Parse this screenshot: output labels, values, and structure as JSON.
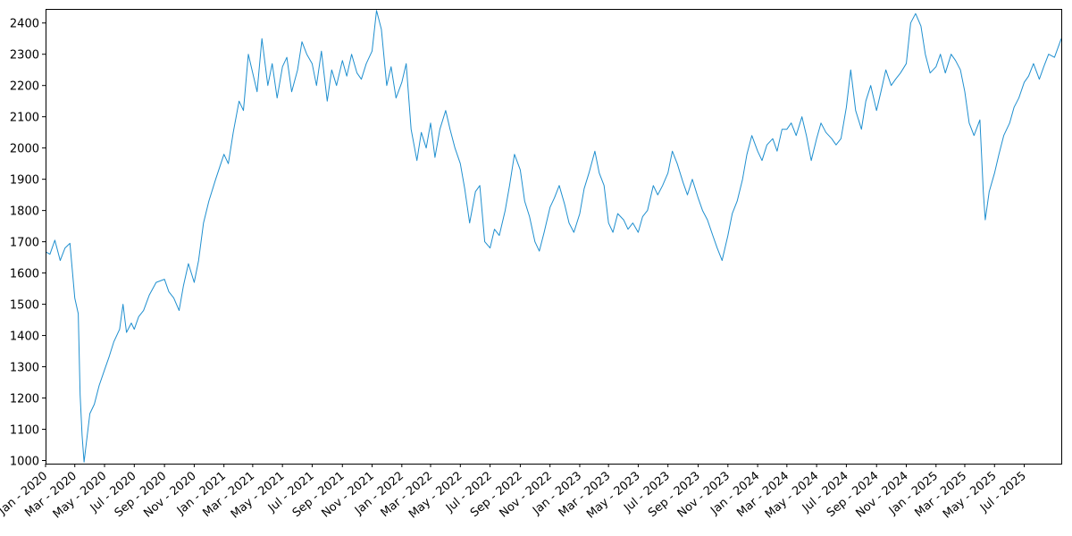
{
  "chart_data": {
    "type": "line",
    "title": "",
    "xlabel": "",
    "ylabel": "",
    "ylim": [
      990,
      2445
    ],
    "xlim": [
      "2020-01-01",
      "2025-09-15"
    ],
    "grid": false,
    "legend": "none",
    "yticks": [
      "1000",
      "1100",
      "1200",
      "1300",
      "1400",
      "1500",
      "1600",
      "1700",
      "1800",
      "1900",
      "2000",
      "2100",
      "2200",
      "2300",
      "2400"
    ],
    "xticks": [
      {
        "date": "2020-01-01",
        "label": "Jan - 2020"
      },
      {
        "date": "2020-03-01",
        "label": "Mar - 2020"
      },
      {
        "date": "2020-05-01",
        "label": "May - 2020"
      },
      {
        "date": "2020-07-01",
        "label": "Jul - 2020"
      },
      {
        "date": "2020-09-01",
        "label": "Sep - 2020"
      },
      {
        "date": "2020-11-01",
        "label": "Nov - 2020"
      },
      {
        "date": "2021-01-01",
        "label": "Jan - 2021"
      },
      {
        "date": "2021-03-01",
        "label": "Mar - 2021"
      },
      {
        "date": "2021-05-01",
        "label": "May - 2021"
      },
      {
        "date": "2021-07-01",
        "label": "Jul - 2021"
      },
      {
        "date": "2021-09-01",
        "label": "Sep - 2021"
      },
      {
        "date": "2021-11-01",
        "label": "Nov - 2021"
      },
      {
        "date": "2022-01-01",
        "label": "Jan - 2022"
      },
      {
        "date": "2022-03-01",
        "label": "Mar - 2022"
      },
      {
        "date": "2022-05-01",
        "label": "May - 2022"
      },
      {
        "date": "2022-07-01",
        "label": "Jul - 2022"
      },
      {
        "date": "2022-09-01",
        "label": "Sep - 2022"
      },
      {
        "date": "2022-11-01",
        "label": "Nov - 2022"
      },
      {
        "date": "2023-01-01",
        "label": "Jan - 2023"
      },
      {
        "date": "2023-03-01",
        "label": "Mar - 2023"
      },
      {
        "date": "2023-05-01",
        "label": "May - 2023"
      },
      {
        "date": "2023-07-01",
        "label": "Jul - 2023"
      },
      {
        "date": "2023-09-01",
        "label": "Sep - 2023"
      },
      {
        "date": "2023-11-01",
        "label": "Nov - 2023"
      },
      {
        "date": "2024-01-01",
        "label": "Jan - 2024"
      },
      {
        "date": "2024-03-01",
        "label": "Mar - 2024"
      },
      {
        "date": "2024-05-01",
        "label": "May - 2024"
      },
      {
        "date": "2024-07-01",
        "label": "Jul - 2024"
      },
      {
        "date": "2024-09-01",
        "label": "Sep - 2024"
      },
      {
        "date": "2024-11-01",
        "label": "Nov - 2024"
      },
      {
        "date": "2025-01-01",
        "label": "Jan - 2025"
      },
      {
        "date": "2025-03-01",
        "label": "Mar - 2025"
      },
      {
        "date": "2025-05-01",
        "label": "May - 2025"
      },
      {
        "date": "2025-07-01",
        "label": "Jul - 2025"
      }
    ],
    "series": [
      {
        "color": "#1f8fcf",
        "points": [
          [
            "2020-01-01",
            1668
          ],
          [
            "2020-01-10",
            1660
          ],
          [
            "2020-01-20",
            1705
          ],
          [
            "2020-01-31",
            1640
          ],
          [
            "2020-02-10",
            1680
          ],
          [
            "2020-02-20",
            1695
          ],
          [
            "2020-03-01",
            1520
          ],
          [
            "2020-03-08",
            1470
          ],
          [
            "2020-03-12",
            1210
          ],
          [
            "2020-03-16",
            1080
          ],
          [
            "2020-03-20",
            995
          ],
          [
            "2020-03-25",
            1060
          ],
          [
            "2020-04-01",
            1150
          ],
          [
            "2020-04-10",
            1180
          ],
          [
            "2020-04-20",
            1240
          ],
          [
            "2020-05-01",
            1290
          ],
          [
            "2020-05-10",
            1330
          ],
          [
            "2020-05-20",
            1380
          ],
          [
            "2020-06-01",
            1420
          ],
          [
            "2020-06-08",
            1500
          ],
          [
            "2020-06-15",
            1410
          ],
          [
            "2020-06-25",
            1440
          ],
          [
            "2020-07-01",
            1420
          ],
          [
            "2020-07-10",
            1460
          ],
          [
            "2020-07-20",
            1480
          ],
          [
            "2020-08-01",
            1530
          ],
          [
            "2020-08-15",
            1570
          ],
          [
            "2020-09-01",
            1580
          ],
          [
            "2020-09-10",
            1540
          ],
          [
            "2020-09-20",
            1520
          ],
          [
            "2020-10-01",
            1480
          ],
          [
            "2020-10-10",
            1560
          ],
          [
            "2020-10-20",
            1630
          ],
          [
            "2020-11-01",
            1570
          ],
          [
            "2020-11-10",
            1640
          ],
          [
            "2020-11-20",
            1760
          ],
          [
            "2020-12-01",
            1830
          ],
          [
            "2020-12-15",
            1900
          ],
          [
            "2021-01-01",
            1980
          ],
          [
            "2021-01-10",
            1950
          ],
          [
            "2021-01-20",
            2050
          ],
          [
            "2021-02-01",
            2150
          ],
          [
            "2021-02-10",
            2120
          ],
          [
            "2021-02-20",
            2300
          ],
          [
            "2021-03-01",
            2240
          ],
          [
            "2021-03-10",
            2180
          ],
          [
            "2021-03-20",
            2350
          ],
          [
            "2021-04-01",
            2200
          ],
          [
            "2021-04-10",
            2270
          ],
          [
            "2021-04-20",
            2160
          ],
          [
            "2021-05-01",
            2260
          ],
          [
            "2021-05-10",
            2290
          ],
          [
            "2021-05-20",
            2180
          ],
          [
            "2021-06-01",
            2250
          ],
          [
            "2021-06-10",
            2340
          ],
          [
            "2021-06-20",
            2300
          ],
          [
            "2021-07-01",
            2270
          ],
          [
            "2021-07-10",
            2200
          ],
          [
            "2021-07-20",
            2310
          ],
          [
            "2021-08-01",
            2150
          ],
          [
            "2021-08-10",
            2250
          ],
          [
            "2021-08-20",
            2200
          ],
          [
            "2021-09-01",
            2280
          ],
          [
            "2021-09-10",
            2230
          ],
          [
            "2021-09-20",
            2300
          ],
          [
            "2021-10-01",
            2240
          ],
          [
            "2021-10-10",
            2220
          ],
          [
            "2021-10-20",
            2270
          ],
          [
            "2021-11-01",
            2310
          ],
          [
            "2021-11-10",
            2440
          ],
          [
            "2021-11-20",
            2380
          ],
          [
            "2021-12-01",
            2200
          ],
          [
            "2021-12-10",
            2260
          ],
          [
            "2021-12-20",
            2160
          ],
          [
            "2022-01-01",
            2210
          ],
          [
            "2022-01-10",
            2270
          ],
          [
            "2022-01-20",
            2060
          ],
          [
            "2022-02-01",
            1960
          ],
          [
            "2022-02-10",
            2050
          ],
          [
            "2022-02-20",
            2000
          ],
          [
            "2022-03-01",
            2080
          ],
          [
            "2022-03-10",
            1970
          ],
          [
            "2022-03-20",
            2060
          ],
          [
            "2022-04-01",
            2120
          ],
          [
            "2022-04-10",
            2060
          ],
          [
            "2022-04-20",
            2000
          ],
          [
            "2022-05-01",
            1950
          ],
          [
            "2022-05-10",
            1870
          ],
          [
            "2022-05-20",
            1760
          ],
          [
            "2022-06-01",
            1860
          ],
          [
            "2022-06-10",
            1880
          ],
          [
            "2022-06-20",
            1700
          ],
          [
            "2022-07-01",
            1680
          ],
          [
            "2022-07-10",
            1740
          ],
          [
            "2022-07-20",
            1720
          ],
          [
            "2022-08-01",
            1800
          ],
          [
            "2022-08-10",
            1880
          ],
          [
            "2022-08-20",
            1980
          ],
          [
            "2022-09-01",
            1930
          ],
          [
            "2022-09-10",
            1830
          ],
          [
            "2022-09-20",
            1780
          ],
          [
            "2022-10-01",
            1700
          ],
          [
            "2022-10-10",
            1670
          ],
          [
            "2022-10-20",
            1730
          ],
          [
            "2022-11-01",
            1810
          ],
          [
            "2022-11-10",
            1840
          ],
          [
            "2022-11-20",
            1880
          ],
          [
            "2022-12-01",
            1820
          ],
          [
            "2022-12-10",
            1760
          ],
          [
            "2022-12-20",
            1730
          ],
          [
            "2023-01-01",
            1790
          ],
          [
            "2023-01-10",
            1870
          ],
          [
            "2023-01-20",
            1920
          ],
          [
            "2023-02-01",
            1990
          ],
          [
            "2023-02-10",
            1920
          ],
          [
            "2023-02-20",
            1880
          ],
          [
            "2023-03-01",
            1760
          ],
          [
            "2023-03-10",
            1730
          ],
          [
            "2023-03-20",
            1790
          ],
          [
            "2023-04-01",
            1770
          ],
          [
            "2023-04-10",
            1740
          ],
          [
            "2023-04-20",
            1760
          ],
          [
            "2023-05-01",
            1730
          ],
          [
            "2023-05-10",
            1780
          ],
          [
            "2023-05-20",
            1800
          ],
          [
            "2023-06-01",
            1880
          ],
          [
            "2023-06-10",
            1850
          ],
          [
            "2023-06-20",
            1880
          ],
          [
            "2023-07-01",
            1920
          ],
          [
            "2023-07-10",
            1990
          ],
          [
            "2023-07-20",
            1950
          ],
          [
            "2023-08-01",
            1890
          ],
          [
            "2023-08-10",
            1850
          ],
          [
            "2023-08-20",
            1900
          ],
          [
            "2023-09-01",
            1840
          ],
          [
            "2023-09-10",
            1800
          ],
          [
            "2023-09-20",
            1770
          ],
          [
            "2023-10-01",
            1720
          ],
          [
            "2023-10-10",
            1680
          ],
          [
            "2023-10-20",
            1640
          ],
          [
            "2023-11-01",
            1720
          ],
          [
            "2023-11-10",
            1790
          ],
          [
            "2023-11-20",
            1830
          ],
          [
            "2023-12-01",
            1900
          ],
          [
            "2023-12-10",
            1980
          ],
          [
            "2023-12-20",
            2040
          ],
          [
            "2024-01-01",
            1990
          ],
          [
            "2024-01-10",
            1960
          ],
          [
            "2024-01-20",
            2010
          ],
          [
            "2024-02-01",
            2030
          ],
          [
            "2024-02-10",
            1990
          ],
          [
            "2024-02-20",
            2060
          ],
          [
            "2024-03-01",
            2060
          ],
          [
            "2024-03-10",
            2080
          ],
          [
            "2024-03-20",
            2040
          ],
          [
            "2024-04-01",
            2100
          ],
          [
            "2024-04-10",
            2040
          ],
          [
            "2024-04-20",
            1960
          ],
          [
            "2024-05-01",
            2030
          ],
          [
            "2024-05-10",
            2080
          ],
          [
            "2024-05-20",
            2050
          ],
          [
            "2024-06-01",
            2030
          ],
          [
            "2024-06-10",
            2010
          ],
          [
            "2024-06-20",
            2030
          ],
          [
            "2024-07-01",
            2130
          ],
          [
            "2024-07-10",
            2250
          ],
          [
            "2024-07-20",
            2120
          ],
          [
            "2024-08-01",
            2060
          ],
          [
            "2024-08-10",
            2150
          ],
          [
            "2024-08-20",
            2200
          ],
          [
            "2024-09-01",
            2120
          ],
          [
            "2024-09-10",
            2180
          ],
          [
            "2024-09-20",
            2250
          ],
          [
            "2024-10-01",
            2200
          ],
          [
            "2024-10-10",
            2220
          ],
          [
            "2024-10-20",
            2240
          ],
          [
            "2024-11-01",
            2270
          ],
          [
            "2024-11-10",
            2400
          ],
          [
            "2024-11-20",
            2430
          ],
          [
            "2024-12-01",
            2390
          ],
          [
            "2024-12-10",
            2300
          ],
          [
            "2024-12-20",
            2240
          ],
          [
            "2025-01-01",
            2260
          ],
          [
            "2025-01-10",
            2300
          ],
          [
            "2025-01-20",
            2240
          ],
          [
            "2025-02-01",
            2300
          ],
          [
            "2025-02-10",
            2280
          ],
          [
            "2025-02-20",
            2250
          ],
          [
            "2025-03-01",
            2180
          ],
          [
            "2025-03-10",
            2080
          ],
          [
            "2025-03-20",
            2040
          ],
          [
            "2025-04-01",
            2090
          ],
          [
            "2025-04-08",
            1860
          ],
          [
            "2025-04-12",
            1770
          ],
          [
            "2025-04-20",
            1860
          ],
          [
            "2025-05-01",
            1920
          ],
          [
            "2025-05-10",
            1980
          ],
          [
            "2025-05-20",
            2040
          ],
          [
            "2025-06-01",
            2080
          ],
          [
            "2025-06-10",
            2130
          ],
          [
            "2025-06-20",
            2160
          ],
          [
            "2025-07-01",
            2210
          ],
          [
            "2025-07-10",
            2230
          ],
          [
            "2025-07-20",
            2270
          ],
          [
            "2025-08-01",
            2220
          ],
          [
            "2025-08-10",
            2260
          ],
          [
            "2025-08-20",
            2300
          ],
          [
            "2025-09-01",
            2290
          ],
          [
            "2025-09-15",
            2350
          ]
        ]
      }
    ]
  }
}
